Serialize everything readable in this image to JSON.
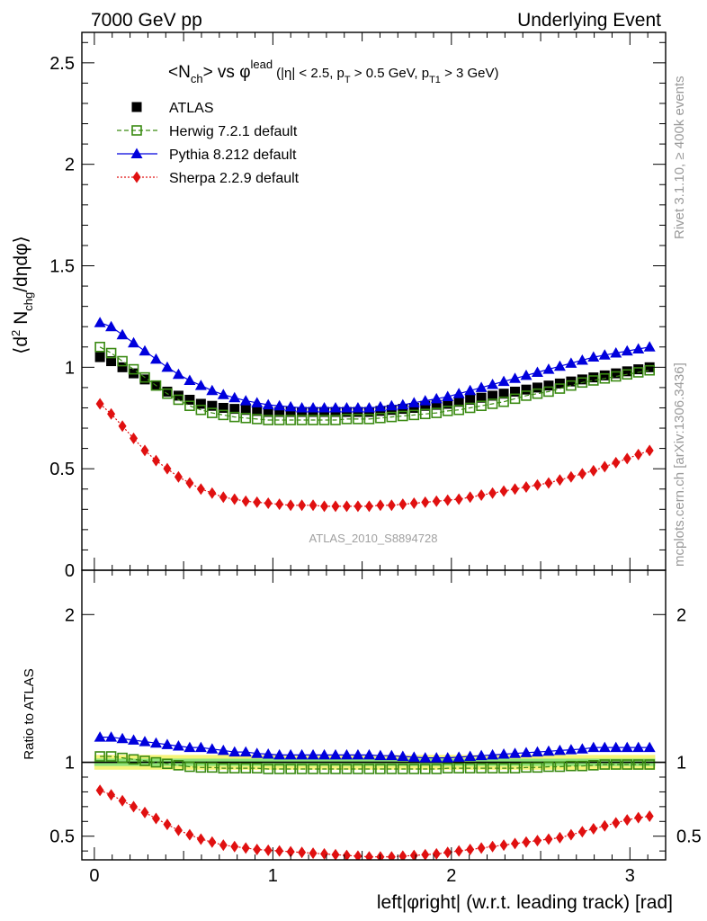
{
  "header": {
    "left": "7000 GeV pp",
    "right": "Underlying Event"
  },
  "plot_title": {
    "main": "<N",
    "main_sub": "ch",
    "vs": "> vs φ",
    "sup": "lead",
    "cuts": "(|η| < 2.5, p",
    "cuts_sub1": "T",
    "cuts_mid": " > 0.5 GeV, p",
    "cuts_sub2": "T1",
    "cuts_end": " > 3 GeV)"
  },
  "side_labels": {
    "rivet": "Rivet 3.1.10, ≥ 400k events",
    "mcplots": "mcplots.cern.ch [arXiv:1306.3436]"
  },
  "watermark": "ATLAS_2010_S8894728",
  "y_label_main": {
    "pre": "⟨d",
    "sup2": "2",
    "mid": " N",
    "sub": "chg",
    "post": "/dηdφ⟩"
  },
  "y_label_ratio": "Ratio to ATLAS",
  "x_label": "left|φright| (w.r.t. leading track) [rad]",
  "colors": {
    "atlas": "#000000",
    "herwig": "#3a8a12",
    "pythia": "#0000dd",
    "sherpa": "#e01010",
    "band_outer": "#f6f47a",
    "band_inner": "#8fe37a"
  },
  "chart_data": [
    {
      "type": "scatter",
      "panel": "main",
      "xlabel": "left|φright| (w.r.t. leading track) [rad]",
      "ylabel": "⟨d2 Nchg/dηdφ⟩",
      "xlim": [
        -0.07,
        3.2
      ],
      "ylim": [
        0,
        2.65
      ],
      "xticks": [
        0,
        1,
        2,
        3
      ],
      "xtick_labels": [
        "0",
        "1",
        "2",
        "3"
      ],
      "yticks": [
        0,
        0.5,
        1,
        1.5,
        2,
        2.5
      ],
      "ytick_labels": [
        "0",
        "0.5",
        "1",
        "1.5",
        "2",
        "2.5"
      ],
      "legend_position": "top-left",
      "x": [
        0.0314,
        0.0942,
        0.1571,
        0.2199,
        0.2827,
        0.3456,
        0.4084,
        0.4712,
        0.5341,
        0.5969,
        0.6597,
        0.7226,
        0.7854,
        0.8482,
        0.9111,
        0.9739,
        1.0367,
        1.0996,
        1.1624,
        1.2252,
        1.2881,
        1.3509,
        1.4137,
        1.4765,
        1.5394,
        1.6022,
        1.665,
        1.7279,
        1.7907,
        1.8535,
        1.9164,
        1.9792,
        2.042,
        2.1049,
        2.1677,
        2.2305,
        2.2934,
        2.3562,
        2.419,
        2.4819,
        2.5447,
        2.6075,
        2.6704,
        2.7332,
        2.796,
        2.8588,
        2.9217,
        2.9845,
        3.0473,
        3.1102
      ],
      "series": [
        {
          "name": "ATLAS",
          "marker": "square",
          "values": [
            1.05,
            1.03,
            1.0,
            0.97,
            0.94,
            0.91,
            0.88,
            0.86,
            0.84,
            0.82,
            0.81,
            0.8,
            0.795,
            0.79,
            0.785,
            0.78,
            0.78,
            0.78,
            0.78,
            0.78,
            0.78,
            0.78,
            0.78,
            0.78,
            0.78,
            0.785,
            0.79,
            0.795,
            0.8,
            0.81,
            0.815,
            0.82,
            0.83,
            0.84,
            0.85,
            0.86,
            0.87,
            0.88,
            0.89,
            0.9,
            0.91,
            0.92,
            0.93,
            0.94,
            0.95,
            0.96,
            0.97,
            0.98,
            0.99,
            1.0
          ]
        },
        {
          "name": "Herwig 7.2.1 default",
          "marker": "open-square",
          "line": "dashed",
          "values": [
            1.1,
            1.07,
            1.03,
            0.99,
            0.95,
            0.91,
            0.87,
            0.84,
            0.81,
            0.79,
            0.775,
            0.765,
            0.755,
            0.75,
            0.745,
            0.74,
            0.74,
            0.74,
            0.74,
            0.74,
            0.74,
            0.74,
            0.745,
            0.745,
            0.745,
            0.75,
            0.755,
            0.76,
            0.765,
            0.77,
            0.775,
            0.785,
            0.79,
            0.8,
            0.81,
            0.82,
            0.83,
            0.845,
            0.86,
            0.87,
            0.88,
            0.895,
            0.91,
            0.925,
            0.935,
            0.945,
            0.955,
            0.965,
            0.975,
            0.985
          ]
        },
        {
          "name": "Pythia 8.212 default",
          "marker": "triangle",
          "line": "solid",
          "values": [
            1.22,
            1.2,
            1.16,
            1.12,
            1.08,
            1.04,
            1.0,
            0.965,
            0.935,
            0.91,
            0.885,
            0.865,
            0.85,
            0.835,
            0.825,
            0.815,
            0.81,
            0.805,
            0.8,
            0.8,
            0.8,
            0.8,
            0.8,
            0.8,
            0.8,
            0.805,
            0.81,
            0.815,
            0.825,
            0.835,
            0.845,
            0.855,
            0.87,
            0.885,
            0.9,
            0.915,
            0.93,
            0.945,
            0.96,
            0.975,
            0.99,
            1.005,
            1.02,
            1.035,
            1.05,
            1.06,
            1.07,
            1.08,
            1.09,
            1.1
          ]
        },
        {
          "name": "Sherpa 2.2.9 default",
          "marker": "diamond",
          "line": "dotted",
          "values": [
            0.82,
            0.77,
            0.71,
            0.65,
            0.59,
            0.54,
            0.5,
            0.46,
            0.43,
            0.4,
            0.38,
            0.36,
            0.35,
            0.34,
            0.335,
            0.33,
            0.325,
            0.32,
            0.32,
            0.32,
            0.315,
            0.315,
            0.315,
            0.315,
            0.315,
            0.32,
            0.32,
            0.325,
            0.33,
            0.335,
            0.34,
            0.345,
            0.35,
            0.36,
            0.37,
            0.38,
            0.39,
            0.4,
            0.41,
            0.42,
            0.43,
            0.445,
            0.46,
            0.475,
            0.49,
            0.51,
            0.53,
            0.55,
            0.57,
            0.59
          ]
        }
      ]
    },
    {
      "type": "scatter",
      "panel": "ratio",
      "ylabel": "Ratio to ATLAS",
      "xlim": [
        -0.07,
        3.2
      ],
      "ylim": [
        0.34,
        2.3
      ],
      "yticks": [
        0.5,
        1,
        2
      ],
      "ytick_labels": [
        "0.5",
        "1",
        "2"
      ],
      "band": {
        "outer_low": [
          0.95,
          0.95,
          0.95,
          0.95,
          0.95,
          0.95,
          0.95,
          0.95,
          0.95,
          0.95,
          0.95,
          0.95,
          0.95,
          0.95,
          0.95,
          0.95,
          0.95,
          0.95,
          0.95,
          0.95,
          0.95,
          0.95,
          0.95,
          0.95,
          0.95,
          0.95,
          0.95,
          0.95,
          0.95,
          0.95,
          0.95,
          0.95,
          0.95,
          0.95,
          0.95,
          0.95,
          0.95,
          0.95,
          0.95,
          0.95,
          0.95,
          0.95,
          0.95,
          0.95,
          0.95,
          0.95,
          0.95,
          0.95,
          0.95,
          0.95
        ],
        "outer_high": [
          1.05,
          1.05,
          1.05,
          1.05,
          1.05,
          1.05,
          1.05,
          1.05,
          1.05,
          1.05,
          1.05,
          1.05,
          1.05,
          1.05,
          1.05,
          1.05,
          1.05,
          1.05,
          1.05,
          1.05,
          1.05,
          1.05,
          1.05,
          1.05,
          1.05,
          1.05,
          1.05,
          1.05,
          1.05,
          1.05,
          1.05,
          1.05,
          1.05,
          1.05,
          1.05,
          1.05,
          1.05,
          1.05,
          1.05,
          1.05,
          1.05,
          1.05,
          1.05,
          1.05,
          1.05,
          1.05,
          1.05,
          1.05,
          1.05,
          1.05
        ],
        "inner_low": 0.975,
        "inner_high": 1.025
      },
      "series": [
        {
          "name": "Herwig 7.2.1 default",
          "marker": "open-square",
          "values": [
            1.04,
            1.04,
            1.03,
            1.02,
            1.01,
            1.0,
            0.99,
            0.98,
            0.97,
            0.965,
            0.965,
            0.96,
            0.96,
            0.96,
            0.96,
            0.955,
            0.955,
            0.955,
            0.955,
            0.955,
            0.955,
            0.955,
            0.955,
            0.955,
            0.955,
            0.955,
            0.955,
            0.955,
            0.955,
            0.955,
            0.955,
            0.96,
            0.96,
            0.96,
            0.96,
            0.96,
            0.96,
            0.96,
            0.965,
            0.965,
            0.97,
            0.97,
            0.975,
            0.975,
            0.98,
            0.985,
            0.985,
            0.985,
            0.985,
            0.985
          ]
        },
        {
          "name": "Pythia 8.212 default",
          "marker": "triangle",
          "values": [
            1.17,
            1.17,
            1.16,
            1.15,
            1.14,
            1.13,
            1.12,
            1.11,
            1.1,
            1.1,
            1.09,
            1.08,
            1.07,
            1.07,
            1.06,
            1.055,
            1.05,
            1.05,
            1.05,
            1.05,
            1.05,
            1.05,
            1.05,
            1.05,
            1.05,
            1.045,
            1.045,
            1.04,
            1.035,
            1.03,
            1.03,
            1.03,
            1.035,
            1.04,
            1.045,
            1.05,
            1.055,
            1.06,
            1.065,
            1.07,
            1.075,
            1.08,
            1.085,
            1.09,
            1.1,
            1.1,
            1.1,
            1.1,
            1.1,
            1.1
          ]
        },
        {
          "name": "Sherpa 2.2.9 default",
          "marker": "diamond",
          "values": [
            0.81,
            0.78,
            0.74,
            0.7,
            0.66,
            0.62,
            0.58,
            0.54,
            0.51,
            0.48,
            0.46,
            0.44,
            0.43,
            0.42,
            0.41,
            0.405,
            0.4,
            0.395,
            0.39,
            0.385,
            0.38,
            0.375,
            0.37,
            0.365,
            0.36,
            0.36,
            0.36,
            0.365,
            0.37,
            0.375,
            0.38,
            0.39,
            0.4,
            0.41,
            0.42,
            0.43,
            0.44,
            0.45,
            0.46,
            0.47,
            0.48,
            0.49,
            0.51,
            0.53,
            0.55,
            0.57,
            0.59,
            0.61,
            0.625,
            0.635
          ]
        }
      ]
    }
  ],
  "legend": [
    {
      "label": "ATLAS",
      "key": "atlas"
    },
    {
      "label": "Herwig 7.2.1 default",
      "key": "herwig"
    },
    {
      "label": "Pythia 8.212 default",
      "key": "pythia"
    },
    {
      "label": "Sherpa 2.2.9 default",
      "key": "sherpa"
    }
  ]
}
